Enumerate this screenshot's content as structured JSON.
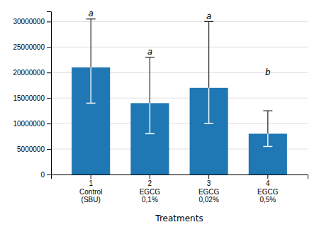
{
  "chart_data": {
    "type": "bar",
    "categories": [
      "1\nControl\n(SBU)",
      "2\nEGCG\n0,1%",
      "3\nEGCG\n0,02%",
      "4\nEGCG\n0,5%"
    ],
    "values": [
      21000000,
      14000000,
      17000000,
      8000000
    ],
    "err_up": [
      9500000,
      9000000,
      13000000,
      4500000
    ],
    "err_down": [
      7000000,
      6000000,
      7000000,
      2500000
    ],
    "letters": [
      "a",
      "a",
      "a",
      "b"
    ],
    "letter_y": [
      31000000,
      23500000,
      30500000,
      19500000
    ],
    "xlabel": "Treatments",
    "ylim": [
      0,
      32000000
    ],
    "yticks": [
      0,
      5000000,
      10000000,
      15000000,
      20000000,
      25000000,
      30000000
    ],
    "grid": true
  }
}
